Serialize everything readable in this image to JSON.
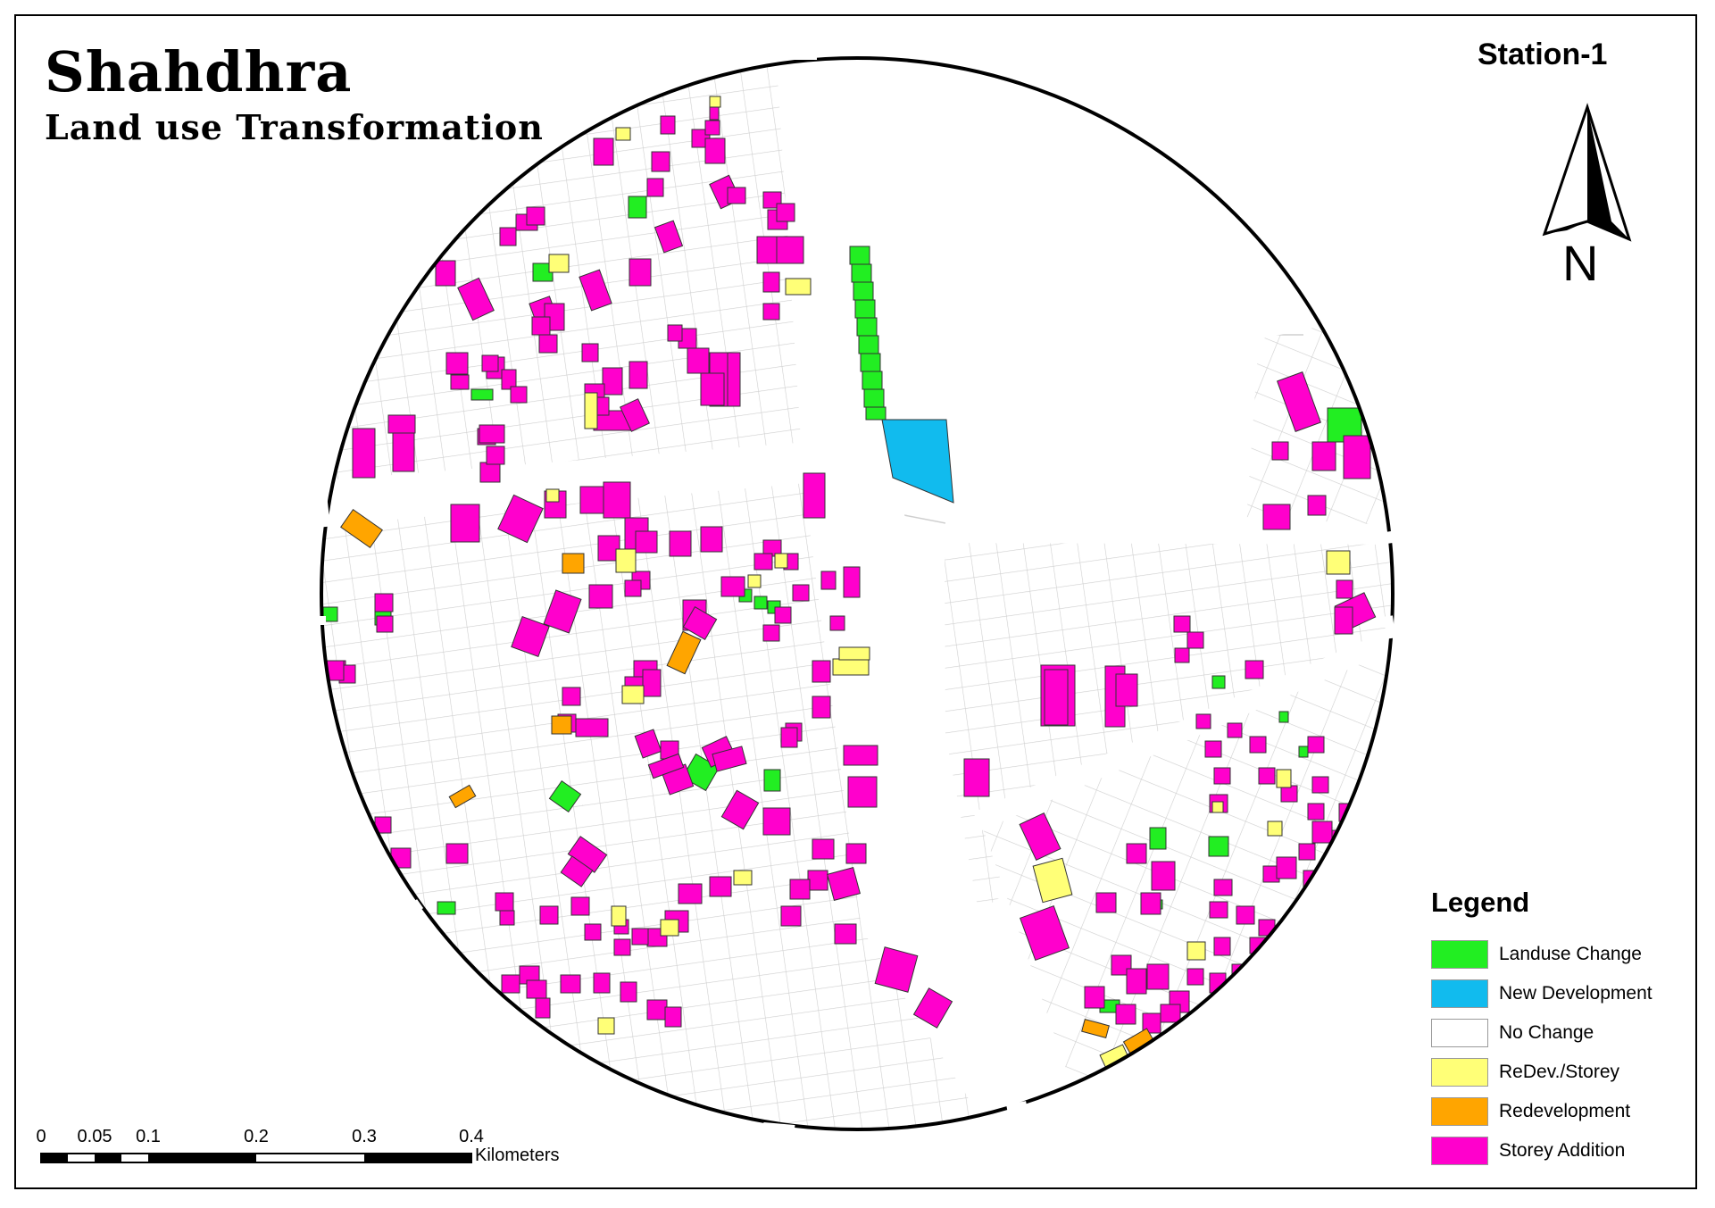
{
  "map": {
    "title": "Shahdhra",
    "subtitle": "Land use Transformation",
    "station": "Station-1",
    "north_label": "N"
  },
  "legend": {
    "title": "Legend",
    "items": [
      {
        "label": "Landuse Change",
        "color": "#22ee22"
      },
      {
        "label": "New Development",
        "color": "#11bbee"
      },
      {
        "label": "No Change",
        "color": "#ffffff"
      },
      {
        "label": "ReDev./Storey",
        "color": "#ffff77"
      },
      {
        "label": "Redevelopment",
        "color": "#ffa500"
      },
      {
        "label": "Storey Addition",
        "color": "#ff00cc"
      }
    ]
  },
  "scale_bar": {
    "ticks": [
      "0",
      "0.05",
      "0.1",
      "0.2",
      "0.3",
      "0.4"
    ],
    "unit": "Kilometers"
  }
}
